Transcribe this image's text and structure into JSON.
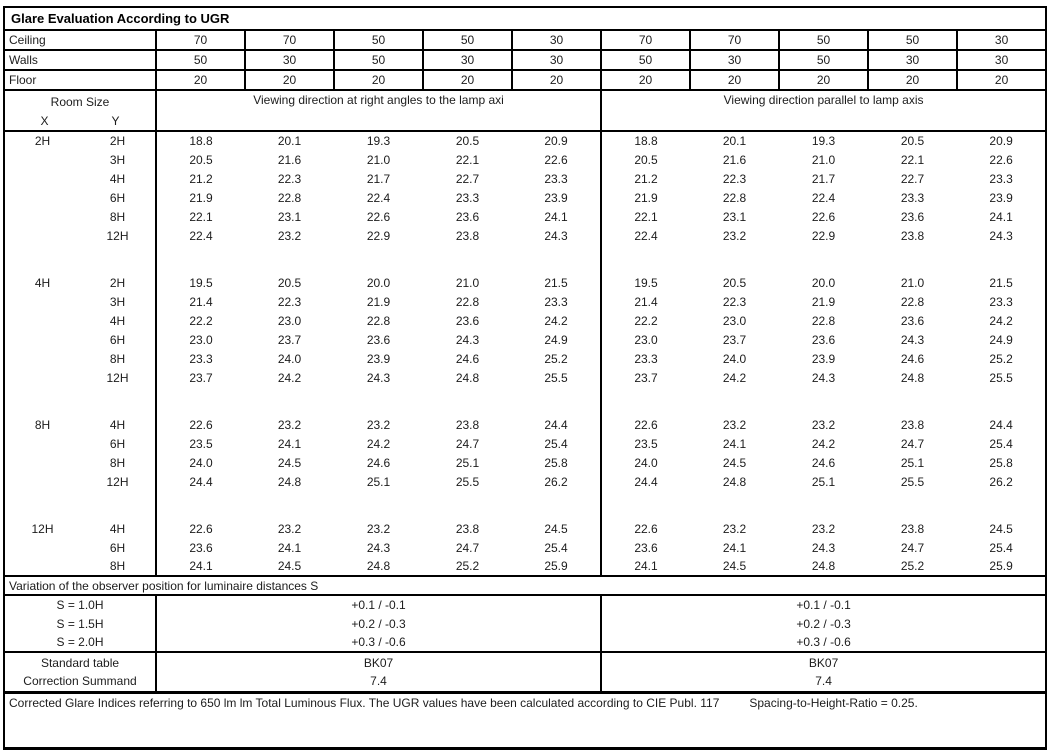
{
  "title": "Glare Evaluation According to UGR",
  "reflectance_rows": [
    {
      "label": "Ceiling",
      "values": [
        "70",
        "70",
        "50",
        "50",
        "30",
        "70",
        "70",
        "50",
        "50",
        "30"
      ]
    },
    {
      "label": "Walls",
      "values": [
        "50",
        "30",
        "50",
        "30",
        "30",
        "50",
        "30",
        "50",
        "30",
        "30"
      ]
    },
    {
      "label": "Floor",
      "values": [
        "20",
        "20",
        "20",
        "20",
        "20",
        "20",
        "20",
        "20",
        "20",
        "20"
      ]
    }
  ],
  "header": {
    "room_size": "Room Size",
    "x_label": "X",
    "y_label": "Y",
    "left_heading": "Viewing direction at right angles to the lamp axi",
    "right_heading": "Viewing direction parallel to lamp axis"
  },
  "ugr_blocks": [
    {
      "x": "2H",
      "rows": [
        {
          "y": "2H",
          "left": [
            "18.8",
            "20.1",
            "19.3",
            "20.5",
            "20.9"
          ],
          "right": [
            "18.8",
            "20.1",
            "19.3",
            "20.5",
            "20.9"
          ]
        },
        {
          "y": "3H",
          "left": [
            "20.5",
            "21.6",
            "21.0",
            "22.1",
            "22.6"
          ],
          "right": [
            "20.5",
            "21.6",
            "21.0",
            "22.1",
            "22.6"
          ]
        },
        {
          "y": "4H",
          "left": [
            "21.2",
            "22.3",
            "21.7",
            "22.7",
            "23.3"
          ],
          "right": [
            "21.2",
            "22.3",
            "21.7",
            "22.7",
            "23.3"
          ]
        },
        {
          "y": "6H",
          "left": [
            "21.9",
            "22.8",
            "22.4",
            "23.3",
            "23.9"
          ],
          "right": [
            "21.9",
            "22.8",
            "22.4",
            "23.3",
            "23.9"
          ]
        },
        {
          "y": "8H",
          "left": [
            "22.1",
            "23.1",
            "22.6",
            "23.6",
            "24.1"
          ],
          "right": [
            "22.1",
            "23.1",
            "22.6",
            "23.6",
            "24.1"
          ]
        },
        {
          "y": "12H",
          "left": [
            "22.4",
            "23.2",
            "22.9",
            "23.8",
            "24.3"
          ],
          "right": [
            "22.4",
            "23.2",
            "22.9",
            "23.8",
            "24.3"
          ]
        }
      ]
    },
    {
      "x": "4H",
      "rows": [
        {
          "y": "2H",
          "left": [
            "19.5",
            "20.5",
            "20.0",
            "21.0",
            "21.5"
          ],
          "right": [
            "19.5",
            "20.5",
            "20.0",
            "21.0",
            "21.5"
          ]
        },
        {
          "y": "3H",
          "left": [
            "21.4",
            "22.3",
            "21.9",
            "22.8",
            "23.3"
          ],
          "right": [
            "21.4",
            "22.3",
            "21.9",
            "22.8",
            "23.3"
          ]
        },
        {
          "y": "4H",
          "left": [
            "22.2",
            "23.0",
            "22.8",
            "23.6",
            "24.2"
          ],
          "right": [
            "22.2",
            "23.0",
            "22.8",
            "23.6",
            "24.2"
          ]
        },
        {
          "y": "6H",
          "left": [
            "23.0",
            "23.7",
            "23.6",
            "24.3",
            "24.9"
          ],
          "right": [
            "23.0",
            "23.7",
            "23.6",
            "24.3",
            "24.9"
          ]
        },
        {
          "y": "8H",
          "left": [
            "23.3",
            "24.0",
            "23.9",
            "24.6",
            "25.2"
          ],
          "right": [
            "23.3",
            "24.0",
            "23.9",
            "24.6",
            "25.2"
          ]
        },
        {
          "y": "12H",
          "left": [
            "23.7",
            "24.2",
            "24.3",
            "24.8",
            "25.5"
          ],
          "right": [
            "23.7",
            "24.2",
            "24.3",
            "24.8",
            "25.5"
          ]
        }
      ]
    },
    {
      "x": "8H",
      "rows": [
        {
          "y": "4H",
          "left": [
            "22.6",
            "23.2",
            "23.2",
            "23.8",
            "24.4"
          ],
          "right": [
            "22.6",
            "23.2",
            "23.2",
            "23.8",
            "24.4"
          ]
        },
        {
          "y": "6H",
          "left": [
            "23.5",
            "24.1",
            "24.2",
            "24.7",
            "25.4"
          ],
          "right": [
            "23.5",
            "24.1",
            "24.2",
            "24.7",
            "25.4"
          ]
        },
        {
          "y": "8H",
          "left": [
            "24.0",
            "24.5",
            "24.6",
            "25.1",
            "25.8"
          ],
          "right": [
            "24.0",
            "24.5",
            "24.6",
            "25.1",
            "25.8"
          ]
        },
        {
          "y": "12H",
          "left": [
            "24.4",
            "24.8",
            "25.1",
            "25.5",
            "26.2"
          ],
          "right": [
            "24.4",
            "24.8",
            "25.1",
            "25.5",
            "26.2"
          ]
        }
      ]
    },
    {
      "x": "12H",
      "rows": [
        {
          "y": "4H",
          "left": [
            "22.6",
            "23.2",
            "23.2",
            "23.8",
            "24.5"
          ],
          "right": [
            "22.6",
            "23.2",
            "23.2",
            "23.8",
            "24.5"
          ]
        },
        {
          "y": "6H",
          "left": [
            "23.6",
            "24.1",
            "24.3",
            "24.7",
            "25.4"
          ],
          "right": [
            "23.6",
            "24.1",
            "24.3",
            "24.7",
            "25.4"
          ]
        },
        {
          "y": "8H",
          "left": [
            "24.1",
            "24.5",
            "24.8",
            "25.2",
            "25.9"
          ],
          "right": [
            "24.1",
            "24.5",
            "24.8",
            "25.2",
            "25.9"
          ]
        }
      ]
    }
  ],
  "variation_heading": "Variation of the observer position for luminaire distances S",
  "variation_rows": [
    {
      "label": "S = 1.0H",
      "left": "+0.1 / -0.1",
      "right": "+0.1 / -0.1"
    },
    {
      "label": "S = 1.5H",
      "left": "+0.2 / -0.3",
      "right": "+0.2 / -0.3"
    },
    {
      "label": "S = 2.0H",
      "left": "+0.3 / -0.6",
      "right": "+0.3 / -0.6"
    }
  ],
  "summary_rows": [
    {
      "label": "Standard table",
      "left": "BK07",
      "right": "BK07"
    },
    {
      "label": "Correction Summand",
      "left": "7.4",
      "right": "7.4"
    }
  ],
  "footer": {
    "main": "Corrected Glare Indices referring to 650 lm lm Total Luminous Flux. The UGR values have been calculated according to CIE Publ. 117",
    "ratio": "Spacing-to-Height-Ratio = 0.25."
  }
}
